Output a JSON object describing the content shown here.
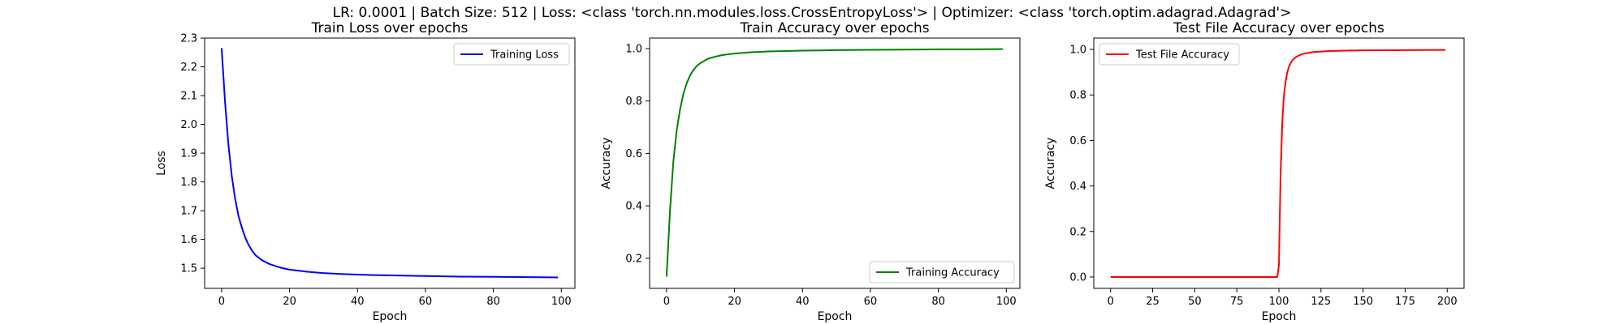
{
  "figure": {
    "suptitle": "LR: 0.0001 | Batch Size: 512 | Loss: <class 'torch.nn.modules.loss.CrossEntropyLoss'> | Optimizer: <class 'torch.optim.adagrad.Adagrad'>"
  },
  "chart_data": [
    {
      "type": "line",
      "title": "Train Loss over epochs",
      "xlabel": "Epoch",
      "ylabel": "Loss",
      "xlim": [
        -5,
        104
      ],
      "ylim": [
        1.43,
        2.3
      ],
      "xticks": [
        0,
        20,
        40,
        60,
        80,
        100
      ],
      "yticks": [
        1.5,
        1.6,
        1.7,
        1.8,
        1.9,
        2.0,
        2.1,
        2.2,
        2.3
      ],
      "ytick_labels": [
        "1.5",
        "1.6",
        "1.7",
        "1.8",
        "1.9",
        "2.0",
        "2.1",
        "2.2",
        "2.3"
      ],
      "grid": false,
      "legend": "top-right",
      "series": [
        {
          "name": "Training Loss",
          "color": "#0000ff",
          "x": [
            0,
            1,
            2,
            3,
            4,
            5,
            6,
            7,
            8,
            9,
            10,
            12,
            14,
            16,
            18,
            20,
            25,
            30,
            35,
            40,
            45,
            50,
            60,
            70,
            80,
            90,
            99
          ],
          "y": [
            2.265,
            2.08,
            1.93,
            1.82,
            1.74,
            1.68,
            1.64,
            1.605,
            1.58,
            1.56,
            1.545,
            1.527,
            1.515,
            1.507,
            1.5,
            1.495,
            1.488,
            1.483,
            1.48,
            1.478,
            1.476,
            1.475,
            1.473,
            1.471,
            1.47,
            1.469,
            1.468
          ]
        }
      ]
    },
    {
      "type": "line",
      "title": "Train Accuracy over epochs",
      "xlabel": "Epoch",
      "ylabel": "Accuracy",
      "xlim": [
        -5,
        104
      ],
      "ylim": [
        0.085,
        1.04
      ],
      "xticks": [
        0,
        20,
        40,
        60,
        80,
        100
      ],
      "yticks": [
        0.2,
        0.4,
        0.6,
        0.8,
        1.0
      ],
      "ytick_labels": [
        "0.2",
        "0.4",
        "0.6",
        "0.8",
        "1.0"
      ],
      "grid": false,
      "legend": "bottom-right",
      "series": [
        {
          "name": "Training Accuracy",
          "color": "#008000",
          "x": [
            0,
            1,
            2,
            3,
            4,
            5,
            6,
            7,
            8,
            9,
            10,
            12,
            14,
            16,
            18,
            20,
            25,
            30,
            40,
            50,
            60,
            70,
            80,
            90,
            99
          ],
          "y": [
            0.13,
            0.38,
            0.57,
            0.69,
            0.77,
            0.83,
            0.87,
            0.9,
            0.92,
            0.935,
            0.945,
            0.96,
            0.968,
            0.974,
            0.978,
            0.981,
            0.986,
            0.989,
            0.992,
            0.994,
            0.995,
            0.996,
            0.997,
            0.997,
            0.998
          ]
        }
      ]
    },
    {
      "type": "line",
      "title": "Test File Accuracy over epochs",
      "xlabel": "Epoch",
      "ylabel": "Accuracy",
      "xlim": [
        -10,
        210
      ],
      "ylim": [
        -0.05,
        1.05
      ],
      "xticks": [
        0,
        25,
        50,
        75,
        100,
        125,
        150,
        175,
        200
      ],
      "yticks": [
        0.0,
        0.2,
        0.4,
        0.6,
        0.8,
        1.0
      ],
      "ytick_labels": [
        "0.0",
        "0.2",
        "0.4",
        "0.6",
        "0.8",
        "1.0"
      ],
      "grid": false,
      "legend": "top-left",
      "series": [
        {
          "name": "Test File Accuracy",
          "color": "#ff0000",
          "x": [
            0,
            20,
            40,
            60,
            80,
            99,
            100,
            101,
            102,
            103,
            104,
            105,
            106,
            107,
            108,
            110,
            112,
            115,
            120,
            130,
            140,
            150,
            175,
            199
          ],
          "y": [
            0.0,
            0.0,
            0.0,
            0.0,
            0.0,
            0.0,
            0.05,
            0.45,
            0.68,
            0.8,
            0.86,
            0.9,
            0.925,
            0.94,
            0.952,
            0.966,
            0.974,
            0.982,
            0.988,
            0.993,
            0.995,
            0.996,
            0.997,
            0.998
          ]
        }
      ]
    }
  ]
}
